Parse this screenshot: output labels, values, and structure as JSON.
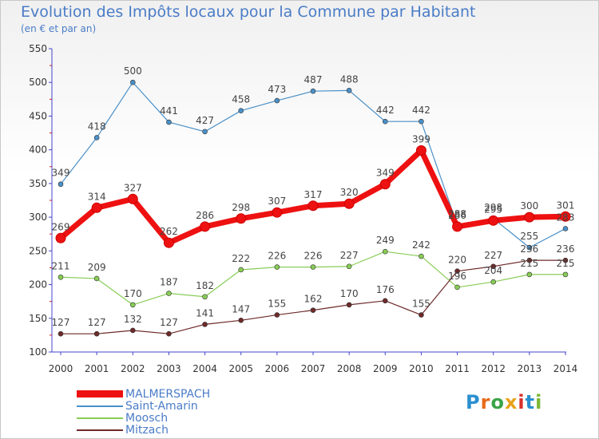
{
  "header": {
    "title": "Evolution des Impôts locaux pour la Commune par Habitant",
    "subtitle": "(en € et par an)"
  },
  "logo": {
    "text": "Proxiti",
    "letters": [
      {
        "ch": "P",
        "color": "#2a8fd0"
      },
      {
        "ch": "r",
        "color": "#e86a1a"
      },
      {
        "ch": "o",
        "color": "#3aa447"
      },
      {
        "ch": "x",
        "color": "#e8a21a"
      },
      {
        "ch": "i",
        "color": "#d8302a"
      },
      {
        "ch": "t",
        "color": "#2a8fd0"
      },
      {
        "ch": "i",
        "color": "#7ab832"
      }
    ]
  },
  "chart_data": {
    "type": "line",
    "title": "Evolution des Impôts locaux pour la Commune par Habitant",
    "subtitle": "(en € et par an)",
    "x": [
      2000,
      2001,
      2002,
      2003,
      2004,
      2005,
      2006,
      2007,
      2008,
      2009,
      2010,
      2011,
      2012,
      2013,
      2014
    ],
    "ylim": [
      100,
      550
    ],
    "yticks": [
      100,
      150,
      200,
      250,
      300,
      350,
      400,
      450,
      500,
      550
    ],
    "grid": false,
    "legend_position": "bottom-left",
    "series": [
      {
        "name": "MALMERSPACH",
        "color": "#ee1111",
        "values": [
          269,
          314,
          327,
          262,
          286,
          298,
          307,
          317,
          320,
          349,
          399,
          286,
          295,
          300,
          301
        ],
        "labels": [
          "269",
          "314",
          "327",
          "262",
          "286",
          "298",
          "307",
          "317",
          "320",
          "349",
          "399",
          "286",
          "295",
          "300",
          "301"
        ]
      },
      {
        "name": "Saint-Amarin",
        "color": "#4a90c8",
        "values": [
          349,
          418,
          500,
          441,
          427,
          458,
          473,
          487,
          488,
          442,
          442,
          288,
          298,
          255,
          283
        ],
        "labels": [
          "349",
          "418",
          "500",
          "441",
          "427",
          "458",
          "473",
          "487",
          "488",
          "442",
          "442",
          "288",
          "298",
          "255",
          "283"
        ]
      },
      {
        "name": "Moosch",
        "color": "#88cc55",
        "values": [
          211,
          209,
          170,
          187,
          182,
          222,
          226,
          226,
          227,
          249,
          242,
          196,
          204,
          215,
          215
        ],
        "labels": [
          "211",
          "209",
          "170",
          "187",
          "182",
          "222",
          "226",
          "226",
          "227",
          "249",
          "242",
          "196",
          "204",
          "215",
          "215"
        ]
      },
      {
        "name": "Mitzach",
        "color": "#6e2a2a",
        "values": [
          127,
          127,
          132,
          127,
          141,
          147,
          155,
          162,
          170,
          176,
          155,
          220,
          227,
          236,
          236
        ],
        "labels": [
          "127",
          "127",
          "132",
          "127",
          "141",
          "147",
          "155",
          "162",
          "170",
          "176",
          "155",
          "220",
          "227",
          "236",
          "236"
        ]
      }
    ]
  }
}
